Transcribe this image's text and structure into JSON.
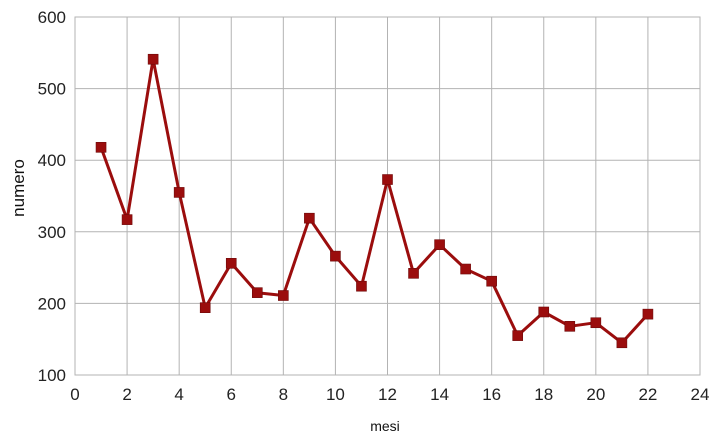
{
  "chart_data": {
    "type": "line",
    "xlabel": "mesi",
    "ylabel": "numero",
    "xlim": [
      0,
      24
    ],
    "ylim": [
      100,
      600
    ],
    "xticks": [
      0,
      2,
      4,
      6,
      8,
      10,
      12,
      14,
      16,
      18,
      20,
      22,
      24
    ],
    "yticks": [
      100,
      200,
      300,
      400,
      500,
      600
    ],
    "grid": true,
    "legend": "none",
    "marker": "square",
    "series": [
      {
        "color": "#9b0d0d",
        "points": [
          [
            1,
            418
          ],
          [
            2,
            317
          ],
          [
            3,
            541
          ],
          [
            4,
            355
          ],
          [
            5,
            194
          ],
          [
            6,
            256
          ],
          [
            7,
            215
          ],
          [
            8,
            211
          ],
          [
            9,
            319
          ],
          [
            10,
            266
          ],
          [
            11,
            224
          ],
          [
            12,
            373
          ],
          [
            13,
            242
          ],
          [
            14,
            282
          ],
          [
            15,
            248
          ],
          [
            16,
            231
          ],
          [
            17,
            155
          ],
          [
            18,
            188
          ],
          [
            19,
            168
          ],
          [
            20,
            173
          ],
          [
            21,
            145
          ],
          [
            22,
            185
          ]
        ]
      }
    ]
  }
}
